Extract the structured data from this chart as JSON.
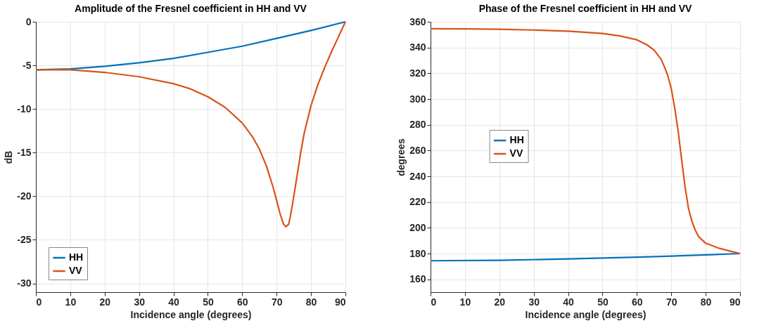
{
  "chart_data": [
    {
      "type": "line",
      "title": "Amplitude of the Fresnel coefficient in HH and VV",
      "xlabel": "Incidence angle (degrees)",
      "ylabel": "dB",
      "xlim": [
        0,
        90
      ],
      "xticks": [
        0,
        10,
        20,
        30,
        40,
        50,
        60,
        70,
        80,
        90
      ],
      "ylim": [
        -31,
        0
      ],
      "yticks": [
        -30,
        -25,
        -20,
        -15,
        -10,
        -5,
        0
      ],
      "grid": true,
      "legend": "bottom left",
      "line_style": "solid",
      "marker": "none",
      "series": [
        {
          "name": "HH",
          "color": "#0072bd",
          "x": [
            0,
            10,
            20,
            30,
            40,
            50,
            60,
            70,
            80,
            90
          ],
          "values": [
            -5.5,
            -5.4,
            -5.1,
            -4.7,
            -4.2,
            -3.5,
            -2.8,
            -1.9,
            -1.0,
            0
          ]
        },
        {
          "name": "VV",
          "color": "#d95319",
          "x": [
            0,
            10,
            20,
            30,
            40,
            45,
            50,
            55,
            60,
            63,
            65,
            67,
            69,
            70,
            71,
            72,
            72.7,
            73.5,
            74,
            75,
            76,
            77,
            78,
            80,
            82,
            84,
            86,
            88,
            90
          ],
          "values": [
            -5.5,
            -5.5,
            -5.8,
            -6.3,
            -7.1,
            -7.7,
            -8.6,
            -9.8,
            -11.6,
            -13.2,
            -14.6,
            -16.5,
            -19,
            -20.5,
            -22,
            -23.2,
            -23.5,
            -23.2,
            -22.3,
            -20,
            -17.5,
            -15,
            -12.8,
            -9.6,
            -7.2,
            -5.2,
            -3.4,
            -1.7,
            0
          ]
        }
      ]
    },
    {
      "type": "line",
      "title": "Phase of the Fresnel coefficient in HH and VV",
      "xlabel": "Incidence angle (degrees)",
      "ylabel": "degrees",
      "xlim": [
        0,
        90
      ],
      "xticks": [
        0,
        10,
        20,
        30,
        40,
        50,
        60,
        70,
        80,
        90
      ],
      "ylim": [
        150,
        360
      ],
      "yticks": [
        160,
        180,
        200,
        220,
        240,
        260,
        280,
        300,
        320,
        340,
        360
      ],
      "grid": true,
      "legend": "left",
      "line_style": "solid",
      "marker": "none",
      "series": [
        {
          "name": "HH",
          "color": "#0072bd",
          "x": [
            0,
            20,
            40,
            60,
            70,
            80,
            90
          ],
          "values": [
            174.4,
            174.8,
            175.8,
            177.2,
            178,
            179,
            180
          ]
        },
        {
          "name": "VV",
          "color": "#d95319",
          "x": [
            0,
            10,
            20,
            30,
            40,
            50,
            55,
            60,
            63,
            65,
            67,
            68,
            69,
            70,
            71,
            72,
            73,
            74,
            75,
            76,
            77,
            78,
            80,
            84,
            87,
            90
          ],
          "values": [
            354.6,
            354.5,
            354.2,
            353.6,
            352.7,
            350.9,
            349,
            346,
            342,
            338,
            331,
            325,
            318,
            308,
            293,
            275,
            253,
            232,
            215,
            205,
            198,
            193,
            188,
            184,
            182,
            180
          ]
        }
      ]
    }
  ]
}
